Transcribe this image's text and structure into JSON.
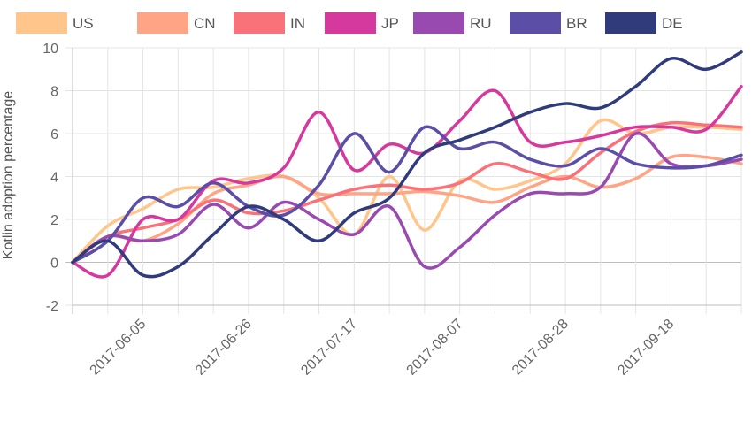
{
  "chart_data": {
    "type": "line",
    "title": "",
    "xlabel": "",
    "ylabel": "Kotlin adoption percentage",
    "ylim": [
      -2,
      10
    ],
    "yticks": [
      -2,
      0,
      2,
      4,
      6,
      8,
      10
    ],
    "x_tick_labels": [
      "2017-06-05",
      "2017-06-26",
      "2017-07-17",
      "2017-08-07",
      "2017-08-28",
      "2017-09-18"
    ],
    "x_tick_positions": [
      2,
      5,
      8,
      11,
      14,
      17
    ],
    "x_count": 20,
    "grid": true,
    "legend_position": "top",
    "series": [
      {
        "name": "US",
        "color": "#ffc58a",
        "values": [
          0,
          1.7,
          2.5,
          3.4,
          3.5,
          3.9,
          4.0,
          3.0,
          1.3,
          4.0,
          1.5,
          3.8,
          3.4,
          3.8,
          4.6,
          6.6,
          6.0,
          6.3,
          6.3,
          6.2
        ]
      },
      {
        "name": "CN",
        "color": "#ffa484",
        "values": [
          0,
          1.2,
          1.0,
          1.8,
          3.2,
          3.6,
          4.0,
          3.2,
          3.2,
          3.2,
          3.3,
          3.1,
          2.8,
          3.5,
          4.0,
          3.5,
          3.9,
          4.9,
          4.9,
          4.6
        ]
      },
      {
        "name": "IN",
        "color": "#f9727a",
        "values": [
          0,
          1.2,
          1.6,
          2.0,
          2.9,
          2.3,
          2.4,
          2.9,
          3.4,
          3.6,
          3.4,
          3.7,
          4.6,
          4.2,
          3.9,
          5.1,
          6.1,
          6.5,
          6.4,
          6.3
        ]
      },
      {
        "name": "JP",
        "color": "#d6399e",
        "values": [
          0,
          -0.6,
          2.0,
          2.0,
          3.8,
          3.7,
          4.4,
          7.0,
          4.3,
          5.5,
          5.1,
          6.6,
          8.0,
          5.6,
          5.6,
          5.9,
          6.3,
          6.3,
          6.2,
          8.2
        ]
      },
      {
        "name": "RU",
        "color": "#994ab1",
        "values": [
          0,
          1.2,
          1.0,
          1.3,
          2.7,
          1.6,
          2.8,
          2.0,
          1.3,
          2.6,
          -0.2,
          0.7,
          2.2,
          3.2,
          3.2,
          3.5,
          6.0,
          4.6,
          4.5,
          4.8
        ]
      },
      {
        "name": "BR",
        "color": "#5a4ea6",
        "values": [
          0,
          1.0,
          3.0,
          2.6,
          3.7,
          2.6,
          2.2,
          3.6,
          6.0,
          4.2,
          6.3,
          5.3,
          5.6,
          4.8,
          4.5,
          5.3,
          4.6,
          4.4,
          4.5,
          5.0
        ]
      },
      {
        "name": "DE",
        "color": "#2f3b7a",
        "values": [
          0,
          1.0,
          -0.6,
          -0.2,
          1.3,
          2.6,
          2.0,
          1.0,
          2.3,
          3.0,
          5.1,
          5.7,
          6.3,
          7.0,
          7.4,
          7.2,
          8.2,
          9.5,
          9.0,
          9.8
        ]
      }
    ]
  }
}
